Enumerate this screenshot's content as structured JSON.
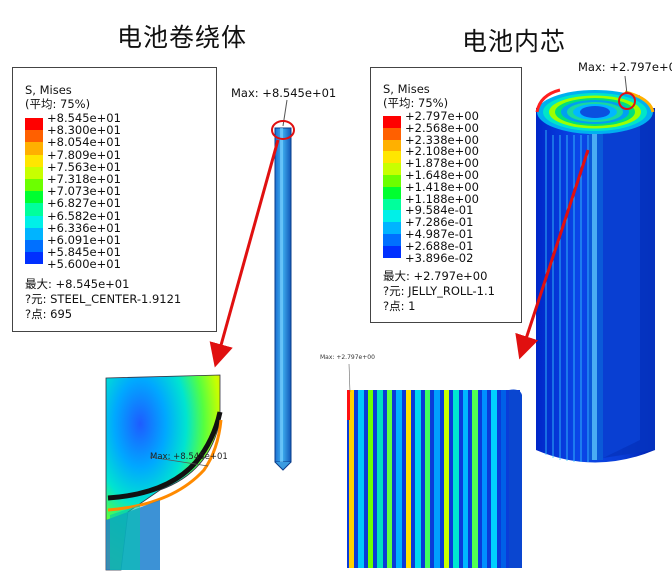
{
  "titles": {
    "left": "电池卷绕体",
    "right": "电池内芯"
  },
  "legend_left": {
    "var_line1": "S, Mises",
    "var_line2": "(平均: 75%)",
    "colors": [
      "#ff0000",
      "#ff6000",
      "#ffb000",
      "#ffe600",
      "#c8ff00",
      "#6cff00",
      "#00ff30",
      "#00ff9c",
      "#00f0e8",
      "#00b4ff",
      "#0070ff",
      "#0030ff",
      "#0000d0"
    ],
    "labels": [
      "+8.545e+01",
      "+8.300e+01",
      "+8.054e+01",
      "+7.809e+01",
      "+7.563e+01",
      "+7.318e+01",
      "+7.073e+01",
      "+6.827e+01",
      "+6.582e+01",
      "+6.336e+01",
      "+6.091e+01",
      "+5.845e+01",
      "+5.600e+01"
    ],
    "max_line": "最大: +8.545e+01",
    "elem_line": "?元: STEEL_CENTER-1.9121",
    "node_line": "?点: 695"
  },
  "legend_right": {
    "var_line1": "S, Mises",
    "var_line2": "(平均: 75%)",
    "colors": [
      "#ff0000",
      "#ff6000",
      "#ffb000",
      "#ffe600",
      "#c8ff00",
      "#6cff00",
      "#00ff30",
      "#00ff9c",
      "#00f0e8",
      "#00b4ff",
      "#0070ff",
      "#0030ff",
      "#0000d0"
    ],
    "labels": [
      "+2.797e+00",
      "+2.568e+00",
      "+2.338e+00",
      "+2.108e+00",
      "+1.878e+00",
      "+1.648e+00",
      "+1.418e+00",
      "+1.188e+00",
      "+9.584e-01",
      "+7.286e-01",
      "+4.987e-01",
      "+2.688e-01",
      "+3.896e-02"
    ],
    "max_line": "最大: +2.797e+00",
    "elem_line": "?元: JELLY_ROLL-1.1",
    "node_line": "?点: 1"
  },
  "annotations": {
    "left_max": "Max: +8.545e+01",
    "left_zoom_max": "Max: +8.545e+01",
    "right_max": "Max: +2.797e+0",
    "right_zoom_max": "Max: +2.797e+00"
  }
}
